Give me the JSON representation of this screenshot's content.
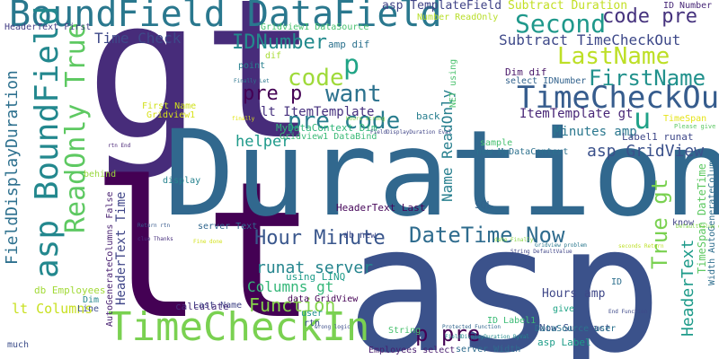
{
  "word_cloud": {
    "words": [
      {
        "text": "gt",
        "color": "#472c7a"
      },
      {
        "text": "lt",
        "color": "#440154"
      },
      {
        "text": "asp",
        "color": "#3b528b"
      },
      {
        "text": "Duration",
        "color": "#31688e"
      },
      {
        "text": "TimeCheckIn",
        "color": "#7ad151"
      },
      {
        "text": "BoundField DataField",
        "color": "#2a788e"
      },
      {
        "text": "asp BoundField",
        "color": "#23888e"
      },
      {
        "text": "ReadOnly True",
        "color": "#5ec962"
      },
      {
        "text": "Second",
        "color": "#1f988b"
      },
      {
        "text": "code pre",
        "color": "#46337e"
      },
      {
        "text": "TimeCheckOut",
        "color": "#365c8d"
      },
      {
        "text": "want",
        "color": "#2c728e"
      },
      {
        "text": "pre p",
        "color": "#440154"
      },
      {
        "text": "code",
        "color": "#9fda3a"
      },
      {
        "text": "p",
        "color": "#20a486"
      },
      {
        "text": "u",
        "color": "#1fa187"
      },
      {
        "text": "LastName",
        "color": "#bddf26"
      },
      {
        "text": "FirstName",
        "color": "#21918c"
      },
      {
        "text": "IDNumber",
        "color": "#238a8d"
      },
      {
        "text": "Time Check",
        "color": "#3e4989"
      },
      {
        "text": "FieldDisplayDuration",
        "color": "#2d708e"
      },
      {
        "text": "pre code",
        "color": "#287d8e"
      },
      {
        "text": "Hour Minute",
        "color": "#39568c"
      },
      {
        "text": "DateTime Now",
        "color": "#2f6c8e"
      },
      {
        "text": "p pre",
        "color": "#440154"
      },
      {
        "text": "True gt",
        "color": "#7ad151"
      },
      {
        "text": "Function",
        "color": "#84d44b"
      },
      {
        "text": "asp GridView",
        "color": "#3b518b"
      },
      {
        "text": "HeaderText",
        "color": "#1e9b8a"
      },
      {
        "text": "Subtract TimeCheckOut",
        "color": "#3e4989"
      },
      {
        "text": "Subtract Duration",
        "color": "#c2df23"
      },
      {
        "text": "asp TemplateField",
        "color": "#414487"
      },
      {
        "text": "runat server",
        "color": "#25858e"
      },
      {
        "text": "Columns gt",
        "color": "#35b779"
      },
      {
        "text": "lt Columns",
        "color": "#c8e020"
      },
      {
        "text": "helper",
        "color": "#1f9a8a"
      },
      {
        "text": "Name ReadOnly",
        "color": "#277f8e"
      },
      {
        "text": "HeaderText Time",
        "color": "#404688"
      },
      {
        "text": "lt ItemTemplate",
        "color": "#46307e"
      },
      {
        "text": "ItemTemplate gt",
        "color": "#482677"
      },
      {
        "text": "Minutes amp",
        "color": "#2a778e"
      },
      {
        "text": "HeaderText Last",
        "color": "#450559"
      },
      {
        "text": "Hours amp",
        "color": "#3f4788"
      },
      {
        "text": "TimeSpan DateTime",
        "color": "#5ec962"
      },
      {
        "text": "ID Number",
        "color": "#482878"
      },
      {
        "text": "HeaderText First",
        "color": "#433e85"
      },
      {
        "text": "Gridview1 DataSource",
        "color": "#48c16e"
      },
      {
        "text": "amp dif",
        "color": "#2c728e"
      },
      {
        "text": "MyDataContext Dim",
        "color": "#32b67a"
      },
      {
        "text": "Gridview1 DataBind",
        "color": "#3aba76"
      },
      {
        "text": "Dim dif",
        "color": "#481668"
      },
      {
        "text": "Label1 runat",
        "color": "#3f4889"
      },
      {
        "text": "new MyDataContext",
        "color": "#2d718e"
      },
      {
        "text": "select IDNumber",
        "color": "#33638d"
      },
      {
        "text": "Width AutoGenerateColumns",
        "color": "#2e6e8e"
      },
      {
        "text": "AutoGenerateColumns False",
        "color": "#482071"
      },
      {
        "text": "db Employees",
        "color": "#a2da37"
      },
      {
        "text": "using LINQ",
        "color": "#1e9c89"
      },
      {
        "text": "data GridView",
        "color": "#440154"
      },
      {
        "text": "server Text",
        "color": "#31678e"
      },
      {
        "text": "Last Name",
        "color": "#414487"
      },
      {
        "text": "calculate",
        "color": "#472d7b"
      },
      {
        "text": "String",
        "color": "#48c16e"
      },
      {
        "text": "Employees select",
        "color": "#481d6f"
      },
      {
        "text": "server Width",
        "color": "#2f6c8e"
      },
      {
        "text": "asp Label",
        "color": "#1e9d89"
      },
      {
        "text": "Now Subtract",
        "color": "#3b528b"
      },
      {
        "text": "DataSource user",
        "color": "#2c738e"
      },
      {
        "text": "ID Label1",
        "color": "#3bbb75"
      },
      {
        "text": "give",
        "color": "#20a486"
      },
      {
        "text": "ID",
        "color": "#2e6f8e"
      },
      {
        "text": "SQL",
        "color": "#33638d"
      },
      {
        "text": "know",
        "color": "#414487"
      },
      {
        "text": "sample",
        "color": "#46c06f"
      },
      {
        "text": "back",
        "color": "#277e8e"
      },
      {
        "text": "NET using",
        "color": "#4ac16d"
      },
      {
        "text": "Number ReadOnly",
        "color": "#b8de29"
      },
      {
        "text": "behind",
        "color": "#98d83e"
      },
      {
        "text": "display",
        "color": "#26828e"
      },
      {
        "text": "db new",
        "color": "#3e4a89"
      },
      {
        "text": "point",
        "color": "#277f8e"
      },
      {
        "text": "dif",
        "color": "#a8db34"
      },
      {
        "text": "First Name",
        "color": "#d0e11c"
      },
      {
        "text": "Gridview1",
        "color": "#d8e219"
      },
      {
        "text": "Dim",
        "color": "#24878e"
      },
      {
        "text": "Line",
        "color": "#3d4d8a"
      },
      {
        "text": "much",
        "color": "#3d4e8a"
      },
      {
        "text": "user",
        "color": "#20928c"
      },
      {
        "text": "rtn",
        "color": "#3b528b"
      },
      {
        "text": "TimeSpan",
        "color": "#e5e419"
      },
      {
        "text": "Please give",
        "color": "#5cc863"
      },
      {
        "text": "Finally Let",
        "color": "#2b758e"
      },
      {
        "text": "rtn End",
        "color": "#482576"
      },
      {
        "text": "Return rtn",
        "color": "#375a8c"
      },
      {
        "text": "clue Thanks",
        "color": "#472f7d"
      },
      {
        "text": "Fine done",
        "color": "#d2e21b"
      },
      {
        "text": "wrong logic",
        "color": "#3d4e8a"
      },
      {
        "text": "Protected Function",
        "color": "#31668e"
      },
      {
        "text": "FieldDisplayDuration ByVal",
        "color": "#238a8d"
      },
      {
        "text": "FieldDisplayDuration Eval",
        "color": "#404588"
      },
      {
        "text": "End Function",
        "color": "#3e4989"
      },
      {
        "text": "Gridview problem",
        "color": "#2a788e"
      },
      {
        "text": "seconds Return",
        "color": "#bddf26"
      },
      {
        "text": "date Finally",
        "color": "#8bd646"
      },
      {
        "text": "String DefaultValue",
        "color": "#404688"
      },
      {
        "text": "DefaultValue data",
        "color": "#84d44b"
      },
      {
        "text": "Hours strong",
        "color": "#86d549"
      },
      {
        "text": "finally",
        "color": "#e2e418"
      }
    ]
  }
}
